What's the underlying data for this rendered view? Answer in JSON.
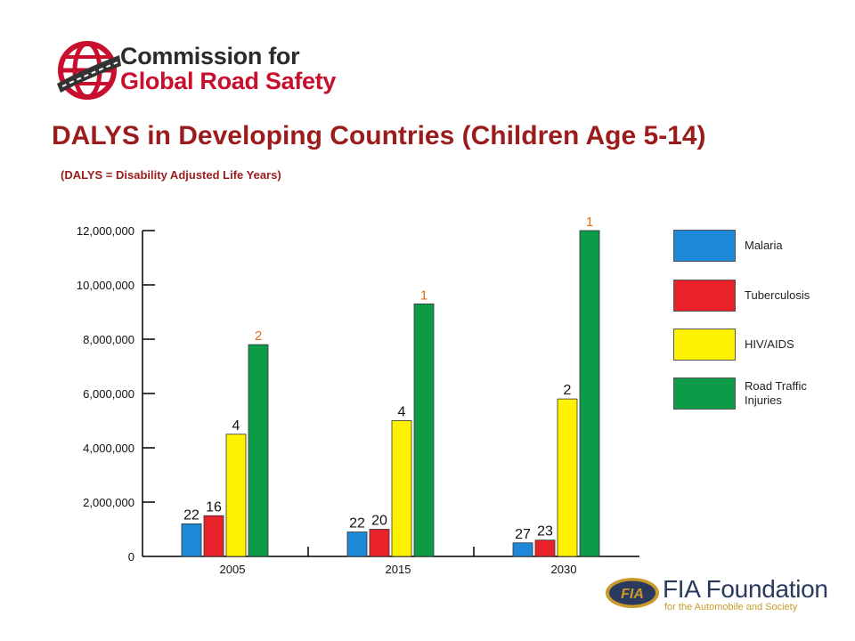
{
  "header": {
    "brand_line1": "Commission for",
    "brand_line2": "Global Road Safety",
    "title": "DALYS in Developing Countries (Children Age 5-14)",
    "subtitle": "(DALYS = Disability Adjusted Life Years)"
  },
  "footer": {
    "fia_name": "FIA Foundation",
    "fia_tagline": "for the Automobile and Society",
    "fia_mark": "FIA"
  },
  "colors": {
    "malaria": "#1e88d8",
    "tuberculosis": "#e8212b",
    "hiv": "#fff200",
    "road": "#0e9b48",
    "rank_label": "#e46c1e",
    "title": "#9b1c1c"
  },
  "chart_data": {
    "type": "bar",
    "categories": [
      "2005",
      "2015",
      "2030"
    ],
    "ylim": [
      0,
      12000000
    ],
    "yticks": [
      0,
      2000000,
      4000000,
      6000000,
      8000000,
      10000000,
      12000000
    ],
    "ytick_labels": [
      "0",
      "2,000,000",
      "4,000,000",
      "6,000,000",
      "8,000,000",
      "10,000,000",
      "12,000,000"
    ],
    "legend_position": "right",
    "series": [
      {
        "name": "Malaria",
        "color": "#1e88d8",
        "values": [
          1200000,
          900000,
          500000
        ],
        "rank_labels": [
          "22",
          "22",
          "27"
        ]
      },
      {
        "name": "Tuberculosis",
        "color": "#e8212b",
        "values": [
          1500000,
          1000000,
          600000
        ],
        "rank_labels": [
          "16",
          "20",
          "23"
        ]
      },
      {
        "name": "HIV/AIDS",
        "color": "#fff200",
        "values": [
          4500000,
          5000000,
          5800000
        ],
        "rank_labels": [
          "4",
          "4",
          "2"
        ]
      },
      {
        "name": "Road Traffic Injuries",
        "color": "#0e9b48",
        "values": [
          7800000,
          9300000,
          12000000
        ],
        "rank_labels": [
          "2",
          "1",
          "1"
        ]
      }
    ]
  }
}
